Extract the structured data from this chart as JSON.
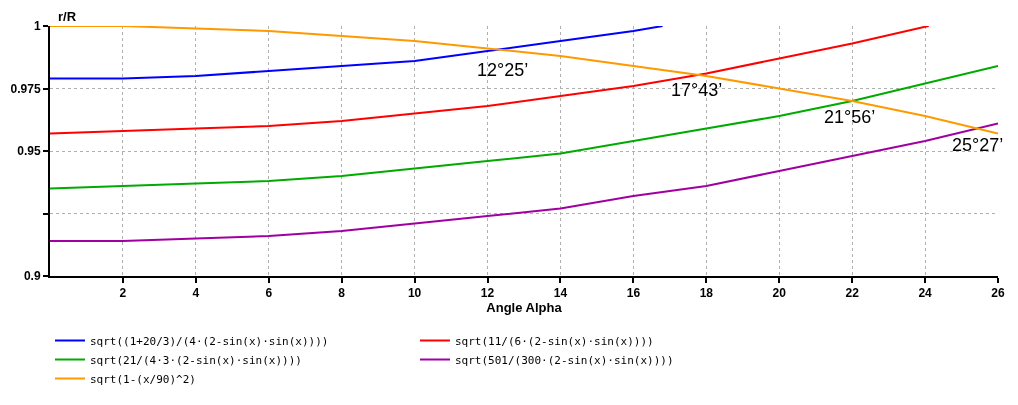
{
  "chart_data": {
    "type": "line",
    "xlabel": "Angle Alpha",
    "ylabel": "r/R",
    "xlim": [
      0,
      26
    ],
    "xticks": [
      2,
      4,
      6,
      8,
      10,
      12,
      14,
      16,
      18,
      20,
      22,
      24,
      26
    ],
    "ylim": [
      0.9,
      1
    ],
    "yticks": [
      0.9,
      {
        "value": 0.925,
        "label": null
      },
      0.95,
      0.975,
      1
    ],
    "grid": true,
    "legend": "bottom left",
    "marker": "none",
    "line_style": "solid",
    "series": [
      {
        "name": "sqrt((1+20/3)/(4·(2-sin(x)·sin(x))))",
        "color": "#0000ff",
        "x": [
          0,
          2,
          4,
          6,
          8,
          10,
          12,
          14,
          16,
          16.8
        ],
        "values": [
          0.979,
          0.979,
          0.98,
          0.982,
          0.984,
          0.986,
          0.99,
          0.994,
          0.998,
          1.0
        ]
      },
      {
        "name": "sqrt(11/(6·(2-sin(x)·sin(x))))",
        "color": "#ff0000",
        "x": [
          0,
          2,
          4,
          6,
          8,
          10,
          12,
          14,
          16,
          18,
          20,
          22,
          24,
          24.1
        ],
        "values": [
          0.957,
          0.958,
          0.959,
          0.96,
          0.962,
          0.965,
          0.968,
          0.972,
          0.976,
          0.981,
          0.987,
          0.993,
          0.9997,
          1.0
        ]
      },
      {
        "name": "sqrt(21/(4·3·(2-sin(x)·sin(x))))",
        "color": "#00aa00",
        "x": [
          0,
          2,
          4,
          6,
          8,
          10,
          12,
          14,
          16,
          18,
          20,
          22,
          24,
          26
        ],
        "values": [
          0.935,
          0.936,
          0.937,
          0.938,
          0.94,
          0.943,
          0.946,
          0.949,
          0.954,
          0.959,
          0.964,
          0.97,
          0.977,
          0.984
        ]
      },
      {
        "name": "sqrt(501/(300·(2-sin(x)·sin(x))))",
        "color": "#a000a0",
        "x": [
          0,
          2,
          4,
          6,
          8,
          10,
          12,
          14,
          16,
          18,
          20,
          22,
          24,
          26
        ],
        "values": [
          0.914,
          0.914,
          0.915,
          0.916,
          0.918,
          0.921,
          0.924,
          0.927,
          0.932,
          0.936,
          0.942,
          0.948,
          0.954,
          0.961
        ]
      },
      {
        "name": "sqrt(1-(x/90)^2)",
        "color": "#ff9900",
        "x": [
          0,
          2,
          4,
          6,
          8,
          10,
          12,
          14,
          16,
          18,
          20,
          22,
          24,
          26
        ],
        "values": [
          1.0,
          1.0,
          0.999,
          0.998,
          0.996,
          0.994,
          0.991,
          0.988,
          0.984,
          0.98,
          0.975,
          0.97,
          0.964,
          0.957
        ]
      }
    ],
    "annotations": [
      {
        "text": "12°25’",
        "x": 12.42,
        "y": 0.989
      },
      {
        "text": "17°43’",
        "x": 17.72,
        "y": 0.981
      },
      {
        "text": "21°56’",
        "x": 21.93,
        "y": 0.97
      },
      {
        "text": "25°27’",
        "x": 25.45,
        "y": 0.959
      }
    ]
  }
}
